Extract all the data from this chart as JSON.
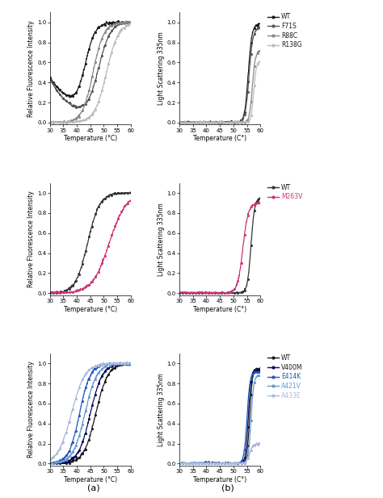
{
  "rows": [
    {
      "legend_labels": [
        "WT",
        "F71S",
        "R88C",
        "R138G"
      ],
      "fluo_colors": [
        "#1a1a1a",
        "#555555",
        "#888888",
        "#bbbbbb"
      ],
      "scatter_colors": [
        "#1a1a1a",
        "#555555",
        "#888888",
        "#bbbbbb"
      ],
      "legend_text_colors": [
        "#1a1a1a",
        "#1a1a1a",
        "#1a1a1a",
        "#1a1a1a"
      ]
    },
    {
      "legend_labels": [
        "WT",
        "M263V"
      ],
      "fluo_colors": [
        "#333333",
        "#cc3377"
      ],
      "scatter_colors": [
        "#333333",
        "#cc3377"
      ],
      "legend_text_colors": [
        "#1a1a1a",
        "#cc3377"
      ]
    },
    {
      "legend_labels": [
        "WT",
        "V400M",
        "E414K",
        "A421V",
        "A433E"
      ],
      "fluo_colors": [
        "#1a1a1a",
        "#0a0a5a",
        "#2255bb",
        "#6699cc",
        "#aabbdd"
      ],
      "scatter_colors": [
        "#1a1a1a",
        "#0a0a5a",
        "#2255bb",
        "#6699cc",
        "#aabbdd"
      ],
      "legend_text_colors": [
        "#1a1a1a",
        "#1a1a1a",
        "#2255bb",
        "#6699cc",
        "#aabbdd"
      ]
    }
  ],
  "xlabel_fluo": "Temperature (°C)",
  "xlabel_scatter": "Temperature (C°)",
  "ylabel_fluo": "Relative Fluorescence Intensity",
  "ylabel_scatter": "Light Scattering 335nm",
  "label_a": "(a)",
  "label_b": "(b)"
}
